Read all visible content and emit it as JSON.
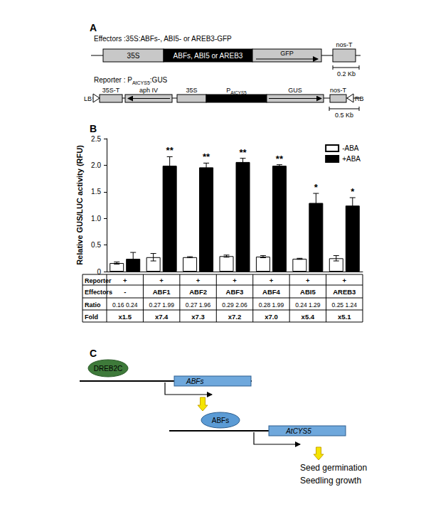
{
  "panel_labels": [
    "A",
    "B",
    "C"
  ],
  "panel_a": {
    "effector": {
      "title": "Effectors :35S:ABFs-, ABI5- or AREB3-GFP",
      "elements": [
        "35S",
        "ABFs, ABI5 or AREB3",
        "GFP",
        "nos-T"
      ],
      "scale_bar": "0.2 Kb"
    },
    "reporter": {
      "title": {
        "parts": [
          {
            "text": "Reporter : P"
          },
          {
            "text": "AtCYS5",
            "sub": true
          },
          {
            "text": ":GUS"
          }
        ]
      },
      "elements": [
        "LB",
        "35S-T",
        "aph IV",
        "35S",
        {
          "parts": [
            {
              "text": "P"
            },
            {
              "text": "AtCYS5",
              "sub": true
            }
          ]
        },
        "GUS",
        "nos-T",
        "RB"
      ],
      "scale_bar": "0.5 Kb"
    }
  },
  "chart_data": {
    "type": "bar",
    "y_label": "Relative GUS/LUC activity (RFU)",
    "categories": [
      "-",
      "ABF1",
      "ABF2",
      "ABF3",
      "ABF4",
      "ABI5",
      "AREB3"
    ],
    "series": [
      {
        "name": "-ABA",
        "color": "#ffffff",
        "values": [
          0.16,
          0.27,
          0.27,
          0.29,
          0.28,
          0.24,
          0.25
        ],
        "errors": [
          0.02,
          0.07,
          0.01,
          0.02,
          0.02,
          0.01,
          0.05
        ]
      },
      {
        "name": "+ABA",
        "color": "#000000",
        "values": [
          0.24,
          1.99,
          1.96,
          2.06,
          1.99,
          1.29,
          1.24
        ],
        "errors": [
          0.12,
          0.17,
          0.08,
          0.07,
          0.02,
          0.18,
          0.15
        ],
        "annotations": [
          null,
          "**",
          "**",
          "**",
          "**",
          "*",
          "*"
        ]
      }
    ],
    "ylim": [
      0,
      2.5
    ],
    "yticks": [
      0,
      0.5,
      {
        "value": 1,
        "label": "1.0"
      },
      1.5,
      {
        "value": 2,
        "label": "2.0"
      },
      2.5
    ],
    "grid": false,
    "legend": "top-right",
    "tick_labels": "y"
  },
  "table": {
    "rows": [
      {
        "label": "Reporter",
        "cells": [
          "+",
          "+",
          "+",
          "+",
          "+",
          "+",
          "+"
        ]
      },
      {
        "label": "Effectors",
        "cells": [
          "-",
          "ABF1",
          "ABF2",
          "ABF3",
          "ABF4",
          "ABI5",
          "AREB3"
        ]
      },
      {
        "label": "Ratio",
        "cells": [
          "0.16  0.24",
          "0.27  1.99",
          "0.27  1.96",
          "0.29  2.06",
          "0.28  1.99",
          "0.24  1.29",
          "0.25  1.24"
        ]
      },
      {
        "label": "Fold",
        "cells": [
          "x1.5",
          "x7.4",
          "x7.3",
          "x7.2",
          "x7.0",
          "x5.4",
          "x5.1"
        ]
      }
    ]
  },
  "panel_c": {
    "regulator": "DREB2C",
    "gene_1": "ABFs",
    "protein_1": "ABFs",
    "gene_2": "AtCYS5",
    "outcomes": [
      "Seed germination",
      "Seedling growth"
    ]
  }
}
